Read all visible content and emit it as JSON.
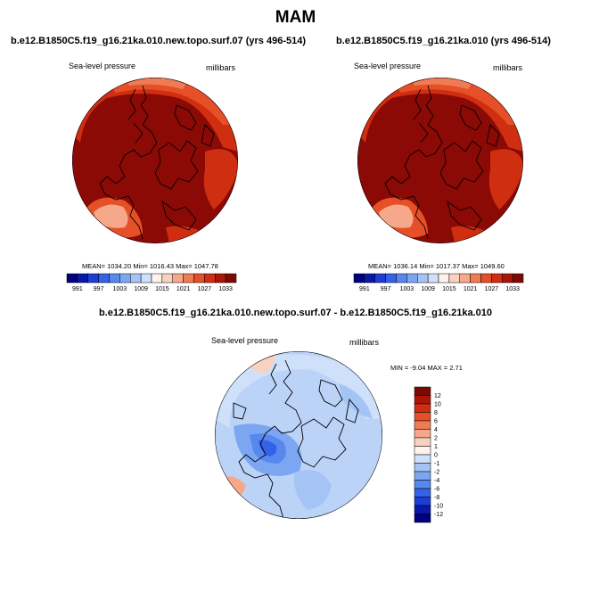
{
  "page_title": "MAM",
  "colors": {
    "hbar": [
      "#000080",
      "#0818a8",
      "#1d3ed6",
      "#3462e6",
      "#5688ee",
      "#7ca6f2",
      "#a5c4f6",
      "#cfe0fa",
      "#fdf3ea",
      "#f9d2bf",
      "#f6a88a",
      "#f07c55",
      "#e65028",
      "#cf2e10",
      "#aa1608",
      "#7c0a03"
    ],
    "diff": [
      "#7c0a03",
      "#aa1608",
      "#cf2e10",
      "#e65028",
      "#f07c55",
      "#f6a88a",
      "#f9d2bf",
      "#fdf3ea",
      "#cfe0fa",
      "#a5c4f6",
      "#7ca6f2",
      "#5688ee",
      "#3462e6",
      "#1d3ed6",
      "#0818a8",
      "#000080"
    ],
    "map_base": "#8b0a05",
    "diff_base": "#bcd3f8"
  },
  "chart_data": [
    {
      "type": "heatmap",
      "panel": "left",
      "title": "b.e12.B1850C5.f19_g16.21ka.010.new.topo.surf.07 (yrs 496-514)",
      "variable": "Sea-level pressure",
      "units": "millibars",
      "stats": "MEAN= 1034.20  Min= 1016.43  Max= 1047.78",
      "mean": 1034.2,
      "min": 1016.43,
      "max": 1047.78,
      "colorbar_labels": [
        "991",
        "997",
        "1003",
        "1009",
        "1015",
        "1021",
        "1027",
        "1033"
      ]
    },
    {
      "type": "heatmap",
      "panel": "right",
      "title": "b.e12.B1850C5.f19_g16.21ka.010 (yrs 496-514)",
      "variable": "Sea-level pressure",
      "units": "millibars",
      "stats": "MEAN= 1036.14  Min= 1017.37  Max= 1049.60",
      "mean": 1036.14,
      "min": 1017.37,
      "max": 1049.6,
      "colorbar_labels": [
        "991",
        "997",
        "1003",
        "1009",
        "1015",
        "1021",
        "1027",
        "1033"
      ]
    },
    {
      "type": "heatmap",
      "panel": "difference",
      "title": "b.e12.B1850C5.f19_g16.21ka.010.new.topo.surf.07 - b.e12.B1850C5.f19_g16.21ka.010",
      "variable": "Sea-level pressure",
      "units": "millibars",
      "stats": "MIN =   -9.04 MAX =    2.71",
      "min": -9.04,
      "max": 2.71,
      "colorbar_labels": [
        "12",
        "10",
        "8",
        "6",
        "4",
        "2",
        "1",
        "0",
        "-1",
        "-2",
        "-4",
        "-6",
        "-8",
        "-10",
        "-12"
      ]
    }
  ]
}
